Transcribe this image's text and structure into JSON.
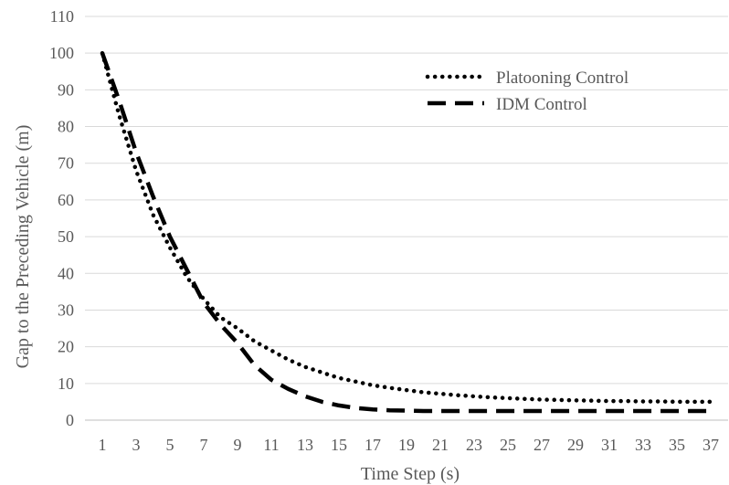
{
  "chart_data": {
    "type": "line",
    "title": "",
    "xlabel": "Time Step (s)",
    "ylabel": "Gap to the Preceding Vehicle (m)",
    "ylim": [
      0,
      110
    ],
    "yticks": [
      "0",
      "10",
      "20",
      "30",
      "40",
      "50",
      "60",
      "70",
      "80",
      "90",
      "100",
      "110"
    ],
    "xlim": [
      1,
      37
    ],
    "xticks": [
      "1",
      "3",
      "5",
      "7",
      "9",
      "11",
      "13",
      "15",
      "17",
      "19",
      "21",
      "23",
      "25",
      "27",
      "29",
      "31",
      "33",
      "35",
      "37"
    ],
    "x": [
      1,
      2,
      3,
      4,
      5,
      6,
      7,
      8,
      9,
      10,
      11,
      12,
      13,
      14,
      15,
      16,
      17,
      18,
      19,
      20,
      21,
      22,
      23,
      24,
      25,
      26,
      27,
      28,
      29,
      30,
      31,
      32,
      33,
      34,
      35,
      36,
      37
    ],
    "grid": true,
    "legend_position": "top-right",
    "series": [
      {
        "name": "Platooning Control",
        "style": "dotted",
        "color": "#000000",
        "values": [
          100,
          83,
          68,
          56,
          47,
          39,
          33,
          28,
          25,
          21.5,
          19,
          16.5,
          14.5,
          13,
          11.5,
          10.5,
          9.5,
          8.8,
          8.2,
          7.6,
          7.2,
          6.8,
          6.5,
          6.2,
          6.0,
          5.8,
          5.6,
          5.5,
          5.4,
          5.3,
          5.2,
          5.2,
          5.1,
          5.1,
          5.0,
          5.0,
          5.0
        ]
      },
      {
        "name": "IDM Control",
        "style": "dashed",
        "color": "#000000",
        "values": [
          100,
          87,
          73,
          61,
          50,
          41,
          32,
          26,
          21,
          15,
          11,
          8.5,
          6.5,
          5,
          4,
          3.3,
          2.9,
          2.7,
          2.6,
          2.5,
          2.5,
          2.5,
          2.5,
          2.5,
          2.5,
          2.5,
          2.5,
          2.5,
          2.5,
          2.5,
          2.5,
          2.5,
          2.5,
          2.5,
          2.5,
          2.5,
          2.5
        ]
      }
    ]
  }
}
